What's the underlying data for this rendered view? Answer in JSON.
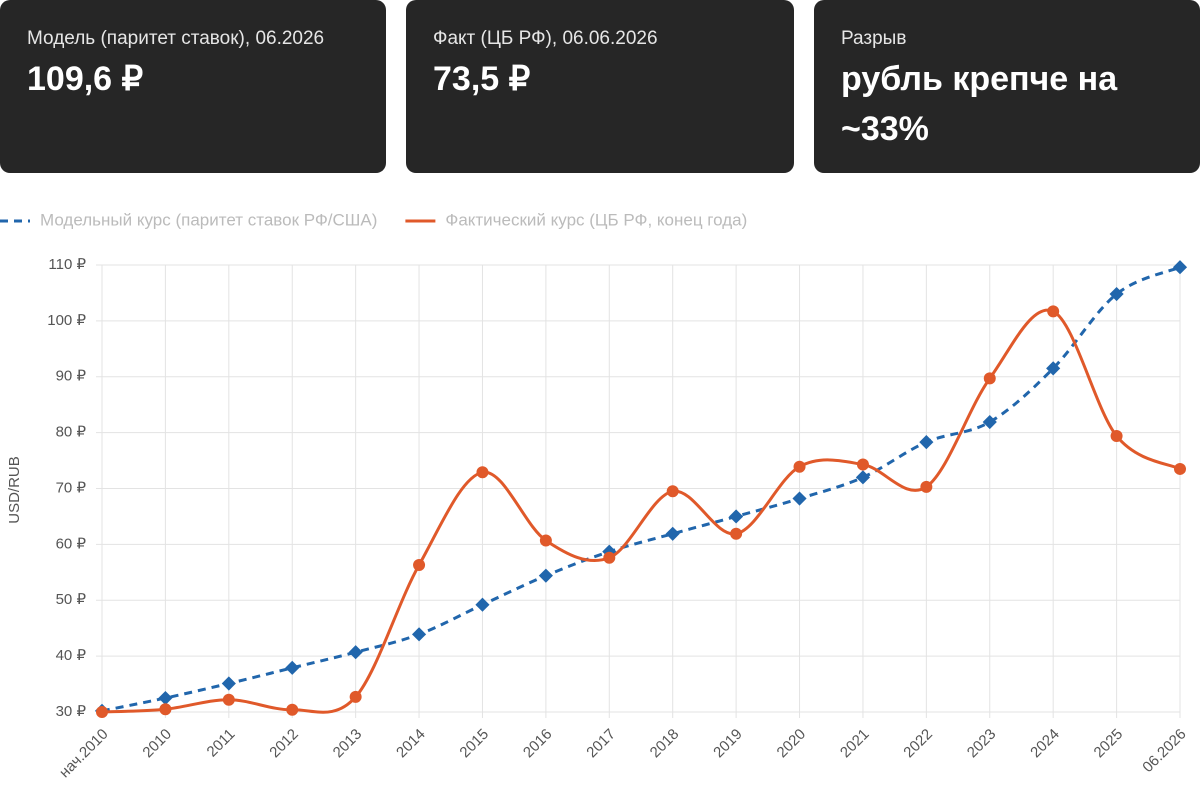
{
  "cards": [
    {
      "label": "Модель (паритет ставок), 06.2026",
      "value": "109,6 ₽"
    },
    {
      "label": "Факт (ЦБ РФ), 06.06.2026",
      "value": "73,5 ₽"
    },
    {
      "label": "Разрыв",
      "value": "рубль крепче на ~33%"
    }
  ],
  "chart_data": {
    "type": "line",
    "y_label": "USD/RUB",
    "categories": [
      "нач.2010",
      "2010",
      "2011",
      "2012",
      "2013",
      "2014",
      "2015",
      "2016",
      "2017",
      "2018",
      "2019",
      "2020",
      "2021",
      "2022",
      "2023",
      "2024",
      "2025",
      "06.2026"
    ],
    "series": [
      {
        "name": "Модельный курс (паритет ставок РФ/США)",
        "color": "#2166ac",
        "dashed": true,
        "marker": "diamond",
        "values": [
          30.2,
          32.5,
          35.1,
          37.9,
          40.7,
          43.9,
          49.2,
          54.4,
          58.7,
          61.9,
          65.0,
          68.2,
          72.0,
          78.3,
          81.9,
          91.5,
          104.8,
          109.6
        ]
      },
      {
        "name": "Фактический курс (ЦБ РФ, конец года)",
        "color": "#e0592a",
        "dashed": false,
        "marker": "circle",
        "values": [
          30.0,
          30.5,
          32.2,
          30.4,
          32.7,
          56.3,
          72.9,
          60.7,
          57.6,
          69.5,
          61.9,
          73.9,
          74.3,
          70.3,
          89.7,
          101.7,
          79.4,
          73.5
        ]
      }
    ],
    "ylim": [
      30,
      110
    ],
    "yticks": [
      {
        "value": 30,
        "label": "30 ₽"
      },
      {
        "value": 40,
        "label": "40 ₽"
      },
      {
        "value": 50,
        "label": "50 ₽"
      },
      {
        "value": 60,
        "label": "60 ₽"
      },
      {
        "value": 70,
        "label": "70 ₽"
      },
      {
        "value": 80,
        "label": "80 ₽"
      },
      {
        "value": 90,
        "label": "90 ₽"
      },
      {
        "value": 100,
        "label": "100 ₽"
      },
      {
        "value": 110,
        "label": "110 ₽"
      }
    ],
    "grid": true,
    "legend": "top-left"
  }
}
